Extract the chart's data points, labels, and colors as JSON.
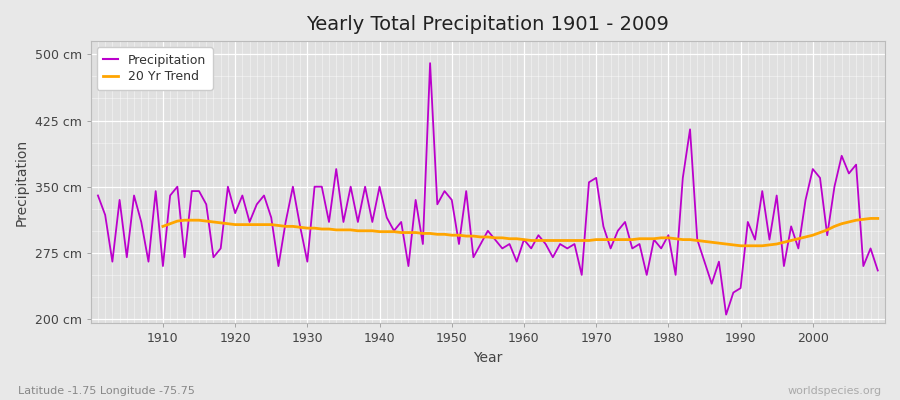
{
  "title": "Yearly Total Precipitation 1901 - 2009",
  "ylabel": "Precipitation",
  "xlabel": "Year",
  "bottom_left_label": "Latitude -1.75 Longitude -75.75",
  "bottom_right_label": "worldspecies.org",
  "line_color": "#bb00cc",
  "trend_color": "#FFA500",
  "fig_bg_color": "#e8e8e8",
  "plot_bg_color": "#e0e0e0",
  "ylim": [
    195,
    515
  ],
  "yticks": [
    200,
    275,
    350,
    425,
    500
  ],
  "ytick_labels": [
    "200 cm",
    "275 cm",
    "350 cm",
    "425 cm",
    "500 cm"
  ],
  "xlim": [
    1900,
    2010
  ],
  "xticks": [
    1910,
    1920,
    1930,
    1940,
    1950,
    1960,
    1970,
    1980,
    1990,
    2000
  ],
  "years": [
    1901,
    1902,
    1903,
    1904,
    1905,
    1906,
    1907,
    1908,
    1909,
    1910,
    1911,
    1912,
    1913,
    1914,
    1915,
    1916,
    1917,
    1918,
    1919,
    1920,
    1921,
    1922,
    1923,
    1924,
    1925,
    1926,
    1927,
    1928,
    1929,
    1930,
    1931,
    1932,
    1933,
    1934,
    1935,
    1936,
    1937,
    1938,
    1939,
    1940,
    1941,
    1942,
    1943,
    1944,
    1945,
    1946,
    1947,
    1948,
    1949,
    1950,
    1951,
    1952,
    1953,
    1954,
    1955,
    1956,
    1957,
    1958,
    1959,
    1960,
    1961,
    1962,
    1963,
    1964,
    1965,
    1966,
    1967,
    1968,
    1969,
    1970,
    1971,
    1972,
    1973,
    1974,
    1975,
    1976,
    1977,
    1978,
    1979,
    1980,
    1981,
    1982,
    1983,
    1984,
    1985,
    1986,
    1987,
    1988,
    1989,
    1990,
    1991,
    1992,
    1993,
    1994,
    1995,
    1996,
    1997,
    1998,
    1999,
    2000,
    2001,
    2002,
    2003,
    2004,
    2005,
    2006,
    2007,
    2008,
    2009
  ],
  "precip": [
    340,
    318,
    265,
    335,
    270,
    340,
    310,
    265,
    345,
    260,
    340,
    350,
    270,
    345,
    345,
    330,
    270,
    280,
    350,
    320,
    340,
    310,
    330,
    340,
    315,
    260,
    310,
    350,
    305,
    265,
    350,
    350,
    310,
    370,
    310,
    350,
    310,
    350,
    310,
    350,
    315,
    300,
    310,
    260,
    335,
    285,
    490,
    330,
    345,
    335,
    285,
    345,
    270,
    285,
    300,
    290,
    280,
    285,
    265,
    290,
    280,
    295,
    285,
    270,
    285,
    280,
    285,
    250,
    355,
    360,
    305,
    280,
    300,
    310,
    280,
    285,
    250,
    290,
    280,
    295,
    250,
    360,
    415,
    290,
    265,
    240,
    265,
    205,
    230,
    235,
    310,
    290,
    345,
    290,
    340,
    260,
    305,
    280,
    335,
    370,
    360,
    295,
    350,
    385,
    365,
    375,
    260,
    280,
    255
  ],
  "trend_years": [
    1910,
    1911,
    1912,
    1913,
    1914,
    1915,
    1916,
    1917,
    1918,
    1919,
    1920,
    1921,
    1922,
    1923,
    1924,
    1925,
    1926,
    1927,
    1928,
    1929,
    1930,
    1931,
    1932,
    1933,
    1934,
    1935,
    1936,
    1937,
    1938,
    1939,
    1940,
    1941,
    1942,
    1943,
    1944,
    1945,
    1946,
    1947,
    1948,
    1949,
    1950,
    1951,
    1952,
    1953,
    1954,
    1955,
    1956,
    1957,
    1958,
    1959,
    1960,
    1961,
    1962,
    1963,
    1964,
    1965,
    1966,
    1967,
    1968,
    1969,
    1970,
    1971,
    1972,
    1973,
    1974,
    1975,
    1976,
    1977,
    1978,
    1979,
    1980,
    1981,
    1982,
    1983,
    1984,
    1985,
    1986,
    1987,
    1988,
    1989,
    1990,
    1991,
    1992,
    1993,
    1994,
    1995,
    1996,
    1997,
    1998,
    1999,
    2000,
    2001,
    2002,
    2003,
    2004,
    2005,
    2006,
    2007,
    2008,
    2009
  ],
  "trend": [
    305,
    308,
    311,
    312,
    312,
    312,
    311,
    310,
    309,
    308,
    307,
    307,
    307,
    307,
    307,
    307,
    306,
    305,
    305,
    304,
    303,
    303,
    302,
    302,
    301,
    301,
    301,
    300,
    300,
    300,
    299,
    299,
    299,
    298,
    298,
    298,
    297,
    297,
    296,
    296,
    295,
    295,
    294,
    294,
    293,
    293,
    292,
    292,
    291,
    291,
    290,
    289,
    289,
    289,
    289,
    289,
    289,
    289,
    289,
    289,
    290,
    290,
    290,
    290,
    290,
    290,
    291,
    291,
    291,
    292,
    292,
    291,
    290,
    290,
    289,
    288,
    287,
    286,
    285,
    284,
    283,
    283,
    283,
    283,
    284,
    285,
    287,
    289,
    291,
    293,
    295,
    298,
    301,
    305,
    308,
    310,
    312,
    313,
    314,
    314
  ]
}
